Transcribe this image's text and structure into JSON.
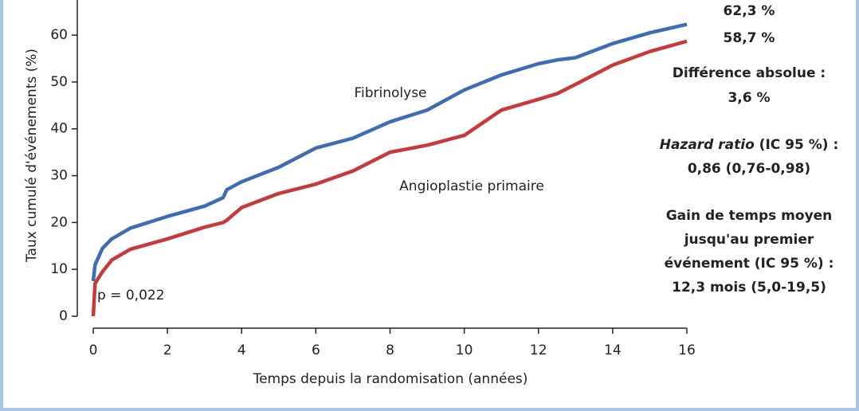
{
  "chart_data": {
    "type": "line",
    "y_label": "Taux cumulé d'événements (%)",
    "x_label": "Temps depuis la randomisation (années)",
    "x": [
      0,
      0.05,
      0.25,
      0.5,
      1,
      2,
      3,
      3.5,
      3.6,
      4,
      5,
      6,
      7,
      8,
      9,
      10,
      11,
      12,
      12.5,
      13,
      14,
      15,
      16
    ],
    "series": [
      {
        "name": "Fibrinolyse",
        "color": "#3d6db5",
        "values": [
          7.5,
          11,
          14.5,
          16.5,
          18.8,
          21.3,
          23.5,
          25.3,
          27,
          28.7,
          31.8,
          35.9,
          38,
          41.5,
          44,
          48.3,
          51.5,
          53.9,
          54.7,
          55.2,
          58.2,
          60.5,
          62.3
        ],
        "end_label": "62,3 %"
      },
      {
        "name": "Angioplastie primaire",
        "color": "#c8393a",
        "values": [
          0,
          7,
          9.5,
          12,
          14.3,
          16.5,
          19,
          20,
          20.5,
          23.2,
          26.2,
          28.2,
          31,
          35,
          36.5,
          38.6,
          44,
          46.3,
          47.5,
          49.5,
          53.6,
          56.5,
          58.7
        ],
        "end_label": "58,7 %"
      }
    ],
    "xlim": [
      0,
      16
    ],
    "xticks": [
      0,
      2,
      4,
      6,
      8,
      10,
      12,
      14,
      16
    ],
    "ylim": [
      0,
      67.5
    ],
    "yticks": [
      0,
      10,
      20,
      30,
      40,
      50,
      60
    ],
    "p_value": "p = 0,022",
    "annotations": {
      "difference_title": "Différence absolue :",
      "difference_value": "3,6 %",
      "hr_term": "Hazard ratio",
      "hr_rest": " (IC 95 %) :",
      "hr_value": "0,86 (0,76-0,98)",
      "gain_lines": [
        "Gain de temps moyen",
        "jusqu'au premier",
        "événement (IC 95 %) :",
        "12,3 mois (5,0-19,5)"
      ]
    }
  }
}
